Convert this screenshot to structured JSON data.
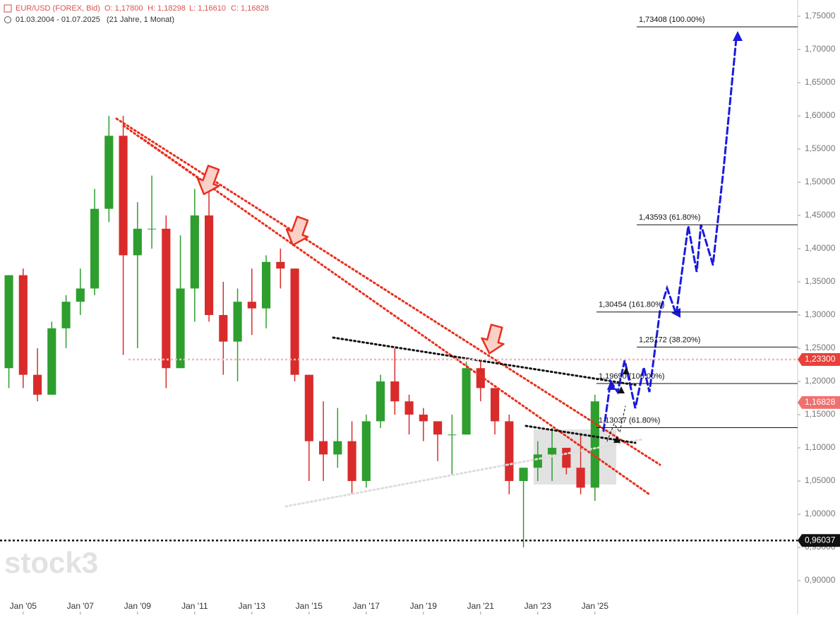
{
  "header": {
    "symbol": "EUR/USD (FOREX, Bid)",
    "open": "O: 1,17800",
    "high": "H: 1,18298",
    "low": "L: 1,16610",
    "close": "C: 1,16828",
    "range": "01.03.2004 - 01.07.2025",
    "span": "(21 Jahre, 1 Monat)"
  },
  "watermark": "stock3",
  "chart_data": {
    "type": "candlestick",
    "x": [
      2004.5,
      2005,
      2005.5,
      2006,
      2006.5,
      2007,
      2007.5,
      2008,
      2008.5,
      2009,
      2009.5,
      2010,
      2010.5,
      2011,
      2011.5,
      2012,
      2012.5,
      2013,
      2013.5,
      2014,
      2014.5,
      2015,
      2015.5,
      2016,
      2016.5,
      2017,
      2017.5,
      2018,
      2018.5,
      2019,
      2019.5,
      2020,
      2020.5,
      2021,
      2021.5,
      2022,
      2022.5,
      2023,
      2023.5,
      2024,
      2024.5,
      2025
    ],
    "open": [
      1.22,
      1.36,
      1.21,
      1.18,
      1.28,
      1.32,
      1.34,
      1.46,
      1.57,
      1.39,
      1.43,
      1.43,
      1.22,
      1.34,
      1.45,
      1.3,
      1.26,
      1.32,
      1.31,
      1.38,
      1.37,
      1.21,
      1.11,
      1.09,
      1.11,
      1.05,
      1.14,
      1.2,
      1.17,
      1.15,
      1.14,
      1.12,
      1.12,
      1.22,
      1.19,
      1.14,
      1.05,
      1.07,
      1.09,
      1.1,
      1.07,
      1.04
    ],
    "high": [
      1.36,
      1.37,
      1.25,
      1.29,
      1.33,
      1.37,
      1.49,
      1.6,
      1.6,
      1.47,
      1.51,
      1.45,
      1.42,
      1.49,
      1.49,
      1.35,
      1.34,
      1.37,
      1.39,
      1.4,
      1.37,
      1.21,
      1.17,
      1.16,
      1.14,
      1.15,
      1.21,
      1.25,
      1.18,
      1.16,
      1.14,
      1.15,
      1.23,
      1.23,
      1.19,
      1.15,
      1.07,
      1.11,
      1.13,
      1.1,
      1.12,
      1.18
    ],
    "low": [
      1.19,
      1.19,
      1.17,
      1.18,
      1.25,
      1.3,
      1.33,
      1.44,
      1.24,
      1.25,
      1.4,
      1.19,
      1.22,
      1.29,
      1.29,
      1.21,
      1.2,
      1.27,
      1.28,
      1.34,
      1.2,
      1.05,
      1.05,
      1.07,
      1.03,
      1.04,
      1.13,
      1.15,
      1.12,
      1.11,
      1.08,
      1.06,
      1.12,
      1.17,
      1.12,
      1.03,
      0.95,
      1.05,
      1.05,
      1.06,
      1.03,
      1.02
    ],
    "close": [
      1.36,
      1.21,
      1.18,
      1.28,
      1.32,
      1.34,
      1.46,
      1.57,
      1.39,
      1.43,
      1.43,
      1.22,
      1.34,
      1.45,
      1.3,
      1.26,
      1.32,
      1.31,
      1.38,
      1.37,
      1.21,
      1.11,
      1.09,
      1.11,
      1.05,
      1.14,
      1.2,
      1.17,
      1.15,
      1.14,
      1.12,
      1.12,
      1.22,
      1.19,
      1.14,
      1.05,
      1.07,
      1.09,
      1.1,
      1.07,
      1.04,
      1.17
    ],
    "up_color": "#2e9e2e",
    "down_color": "#d92b2b",
    "xlim": [
      2004.19,
      2032.09
    ],
    "xticks": [
      {
        "value": 2005,
        "label": "Jan '05"
      },
      {
        "value": 2007,
        "label": "Jan '07"
      },
      {
        "value": 2009,
        "label": "Jan '09"
      },
      {
        "value": 2011,
        "label": "Jan '11"
      },
      {
        "value": 2013,
        "label": "Jan '13"
      },
      {
        "value": 2015,
        "label": "Jan '15"
      },
      {
        "value": 2017,
        "label": "Jan '17"
      },
      {
        "value": 2019,
        "label": "Jan '19"
      },
      {
        "value": 2021,
        "label": "Jan '21"
      },
      {
        "value": 2023,
        "label": "Jan '23"
      },
      {
        "value": 2025,
        "label": "Jan '25"
      }
    ],
    "ylim": [
      0.849,
      1.7745
    ],
    "yticks": [
      {
        "value": 0.9,
        "label": "0,90000"
      },
      {
        "value": 0.95,
        "label": "0,95000"
      },
      {
        "value": 1.0,
        "label": "1,00000"
      },
      {
        "value": 1.05,
        "label": "1,05000"
      },
      {
        "value": 1.1,
        "label": "1,10000"
      },
      {
        "value": 1.15,
        "label": "1,15000"
      },
      {
        "value": 1.2,
        "label": "1,20000"
      },
      {
        "value": 1.25,
        "label": "1,25000"
      },
      {
        "value": 1.3,
        "label": "1,30000"
      },
      {
        "value": 1.35,
        "label": "1,35000"
      },
      {
        "value": 1.4,
        "label": "1,40000"
      },
      {
        "value": 1.45,
        "label": "1,45000"
      },
      {
        "value": 1.5,
        "label": "1,50000"
      },
      {
        "value": 1.55,
        "label": "1,55000"
      },
      {
        "value": 1.6,
        "label": "1,60000"
      },
      {
        "value": 1.65,
        "label": "1,65000"
      },
      {
        "value": 1.7,
        "label": "1,70000"
      },
      {
        "value": 1.75,
        "label": "1,75000"
      }
    ],
    "fib_levels": [
      {
        "value": 1.73408,
        "label": "1,73408 (100.00%)"
      },
      {
        "value": 1.43593,
        "label": "1,43593 (61.80%)"
      },
      {
        "value": 1.30454,
        "label": "1,30454 (161.80%)"
      },
      {
        "value": 1.25172,
        "label": "1,25172 (38.20%)"
      },
      {
        "value": 1.1969,
        "label": "1,19690 (100.00%)"
      },
      {
        "value": 1.13037,
        "label": "1,13037 (61.80%)"
      }
    ],
    "price_tags": [
      {
        "value": 1.233,
        "label": "1,23300",
        "color": "#e8403a"
      },
      {
        "value": 1.16828,
        "label": "1,16828",
        "color": "#f07070"
      },
      {
        "value": 0.96037,
        "label": "0,96037",
        "color": "#111111"
      }
    ]
  }
}
